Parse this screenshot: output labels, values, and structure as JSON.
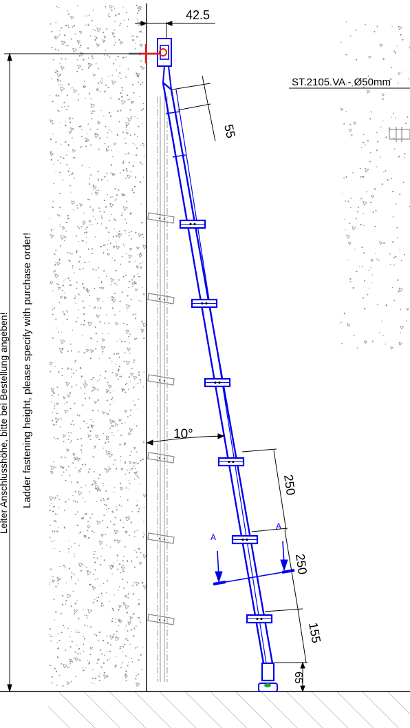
{
  "dimensions": {
    "top_offset": "42.5",
    "rail_width": "55",
    "rung_spacing_1": "250",
    "rung_spacing_2": "250",
    "bottom_rung": "155",
    "foot_height": "65",
    "angle": "10°"
  },
  "labels": {
    "part_number": "ST.2105.VA - Ø50mm",
    "height_de": "Leiter Anschlusshöhe, bitte bei Bestellung angeben!",
    "height_en": "Ladder fastening height, please specify with purchase order!",
    "section_left": "A",
    "section_right": "A"
  },
  "colors": {
    "ladder": "#0000ee",
    "bracket_red": "#e81c1c",
    "wall_line": "#000000",
    "concrete_speckle": "#8a8a8a",
    "ghost_ladder": "#9a9a9a",
    "foot_green": "#1aa33a"
  }
}
